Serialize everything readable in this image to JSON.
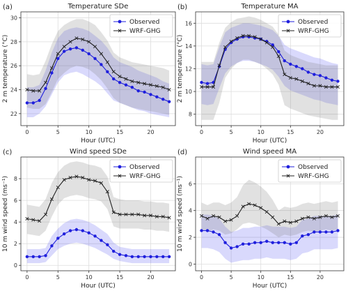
{
  "chart_data": [
    {
      "type": "line",
      "panel_label": "(a)",
      "title": "Temperature SDe",
      "xlabel": "Hour (UTC)",
      "ylabel": "2 m temperature (°C)",
      "xlim": [
        -1,
        24
      ],
      "ylim": [
        21,
        30.5
      ],
      "xticks": [
        0,
        5,
        10,
        15,
        20
      ],
      "yticks": [
        22,
        24,
        26,
        28,
        30
      ],
      "legend_position": "top-right",
      "x": [
        0,
        1,
        2,
        3,
        4,
        5,
        6,
        7,
        8,
        9,
        10,
        11,
        12,
        13,
        14,
        15,
        16,
        17,
        18,
        19,
        20,
        21,
        22,
        23
      ],
      "series": [
        {
          "name": "Observed",
          "color": "#1f1fdd",
          "marker": "circle",
          "values": [
            22.9,
            22.9,
            23.1,
            24.1,
            25.4,
            26.6,
            27.2,
            27.4,
            27.5,
            27.3,
            27.0,
            26.6,
            26.1,
            25.5,
            24.9,
            24.6,
            24.4,
            24.2,
            23.9,
            23.8,
            23.6,
            23.4,
            23.2,
            23.0
          ],
          "band_lower": [
            21.7,
            21.7,
            22.0,
            22.6,
            23.6,
            24.6,
            25.2,
            25.4,
            25.5,
            25.3,
            25.0,
            24.7,
            24.3,
            23.7,
            23.1,
            22.9,
            22.7,
            22.5,
            22.3,
            22.2,
            22.0,
            21.9,
            21.8,
            21.7
          ],
          "band_upper": [
            24.2,
            24.2,
            24.4,
            25.6,
            27.1,
            28.3,
            28.9,
            29.1,
            29.2,
            29.1,
            28.9,
            28.5,
            28.1,
            27.5,
            26.7,
            26.3,
            26.1,
            25.9,
            25.6,
            25.4,
            25.2,
            25.0,
            24.7,
            24.5
          ]
        },
        {
          "name": "WRF-GHG",
          "color": "#222222",
          "marker": "x",
          "values": [
            24.0,
            23.9,
            23.9,
            24.6,
            25.8,
            27.0,
            27.6,
            28.0,
            28.3,
            28.2,
            28.0,
            27.6,
            27.0,
            26.3,
            25.5,
            25.1,
            24.9,
            24.7,
            24.6,
            24.5,
            24.4,
            24.3,
            24.2,
            24.0
          ],
          "band_lower": [
            22.5,
            22.4,
            22.4,
            22.8,
            23.8,
            24.9,
            25.4,
            25.8,
            26.0,
            25.9,
            25.7,
            25.3,
            24.8,
            24.1,
            23.3,
            22.9,
            22.7,
            22.5,
            22.4,
            22.3,
            22.2,
            22.1,
            22.0,
            21.9
          ],
          "band_upper": [
            25.3,
            25.2,
            25.3,
            26.4,
            27.8,
            28.9,
            29.4,
            29.7,
            29.9,
            29.9,
            29.7,
            29.4,
            28.8,
            28.1,
            27.1,
            26.7,
            26.5,
            26.3,
            26.2,
            26.1,
            26.0,
            25.9,
            25.8,
            25.6
          ]
        }
      ]
    },
    {
      "type": "line",
      "panel_label": "(b)",
      "title": "Temperature MA",
      "xlabel": "Hour (UTC)",
      "ylabel": "2 m temperature (°C)",
      "xlim": [
        -1,
        24
      ],
      "ylim": [
        7,
        17
      ],
      "xticks": [
        0,
        5,
        10,
        15,
        20
      ],
      "yticks": [
        8,
        10,
        12,
        14,
        16
      ],
      "legend_position": "top-right",
      "x": [
        0,
        1,
        2,
        3,
        4,
        5,
        6,
        7,
        8,
        9,
        10,
        11,
        12,
        13,
        14,
        15,
        16,
        17,
        18,
        19,
        20,
        21,
        22,
        23
      ],
      "series": [
        {
          "name": "Observed",
          "color": "#1f1fdd",
          "marker": "circle",
          "values": [
            10.8,
            10.7,
            10.8,
            12.2,
            13.7,
            14.3,
            14.6,
            14.8,
            14.8,
            14.7,
            14.6,
            14.4,
            14.1,
            13.5,
            12.7,
            12.4,
            12.2,
            12.0,
            11.7,
            11.5,
            11.4,
            11.2,
            11.0,
            10.9
          ],
          "band_lower": [
            8.9,
            8.8,
            8.9,
            10.3,
            11.6,
            12.2,
            12.5,
            12.7,
            12.7,
            12.6,
            12.4,
            12.2,
            11.9,
            11.3,
            10.5,
            10.1,
            9.9,
            9.7,
            9.5,
            9.3,
            9.2,
            9.0,
            8.9,
            8.8
          ],
          "band_upper": [
            12.4,
            12.3,
            12.4,
            13.9,
            15.2,
            15.6,
            15.8,
            16.0,
            16.0,
            15.9,
            15.8,
            15.6,
            15.4,
            14.9,
            14.1,
            13.8,
            13.6,
            13.4,
            13.2,
            13.0,
            12.9,
            12.7,
            12.5,
            12.4
          ]
        },
        {
          "name": "WRF-GHG",
          "color": "#222222",
          "marker": "x",
          "values": [
            10.4,
            10.4,
            10.4,
            12.3,
            13.9,
            14.4,
            14.7,
            14.9,
            14.9,
            14.8,
            14.6,
            14.3,
            13.9,
            13.1,
            11.5,
            11.2,
            11.1,
            10.9,
            10.7,
            10.5,
            10.5,
            10.4,
            10.4,
            10.4
          ],
          "band_lower": [
            7.5,
            7.5,
            7.5,
            9.0,
            11.2,
            12.0,
            12.5,
            12.8,
            12.8,
            12.6,
            12.4,
            12.0,
            11.5,
            10.6,
            8.8,
            8.5,
            8.3,
            8.1,
            7.9,
            7.8,
            7.7,
            7.6,
            7.5,
            7.5
          ],
          "band_upper": [
            12.6,
            12.6,
            12.6,
            14.3,
            15.6,
            16.1,
            16.4,
            16.5,
            16.6,
            16.5,
            16.3,
            16.0,
            15.7,
            15.0,
            13.6,
            13.2,
            13.0,
            12.8,
            12.6,
            12.5,
            12.4,
            12.3,
            12.3,
            12.3
          ]
        }
      ]
    },
    {
      "type": "line",
      "panel_label": "(c)",
      "title": "Wind speed SDe",
      "xlabel": "Hour (UTC)",
      "ylabel": "10 m wind speed (ms⁻¹)",
      "xlim": [
        -1,
        24
      ],
      "ylim": [
        -0.5,
        10
      ],
      "xticks": [
        0,
        5,
        10,
        15,
        20
      ],
      "yticks": [
        0,
        2,
        4,
        6,
        8
      ],
      "legend_position": "top-right",
      "x": [
        0,
        1,
        2,
        3,
        4,
        5,
        6,
        7,
        8,
        9,
        10,
        11,
        12,
        13,
        14,
        15,
        16,
        17,
        18,
        19,
        20,
        21,
        22,
        23
      ],
      "series": [
        {
          "name": "Observed",
          "color": "#1f1fdd",
          "marker": "circle",
          "values": [
            0.8,
            0.8,
            0.8,
            0.9,
            1.8,
            2.5,
            2.9,
            3.2,
            3.3,
            3.2,
            3.0,
            2.7,
            2.3,
            1.9,
            1.3,
            1.0,
            0.9,
            0.8,
            0.8,
            0.8,
            0.8,
            0.8,
            0.8,
            0.8
          ],
          "band_lower": [
            0.2,
            0.2,
            0.2,
            0.3,
            0.9,
            1.5,
            1.8,
            2.0,
            2.1,
            2.0,
            1.8,
            1.6,
            1.3,
            1.0,
            0.6,
            0.4,
            0.3,
            0.2,
            0.2,
            0.2,
            0.2,
            0.2,
            0.2,
            0.2
          ],
          "band_upper": [
            1.5,
            1.5,
            1.5,
            1.6,
            2.7,
            3.4,
            3.9,
            4.2,
            4.3,
            4.2,
            4.0,
            3.7,
            3.3,
            2.9,
            2.1,
            1.7,
            1.6,
            1.5,
            1.5,
            1.5,
            1.5,
            1.5,
            1.5,
            1.5
          ]
        },
        {
          "name": "WRF-GHG",
          "color": "#222222",
          "marker": "x",
          "values": [
            4.3,
            4.2,
            4.1,
            4.7,
            6.1,
            7.2,
            7.9,
            8.1,
            8.2,
            8.1,
            7.9,
            7.8,
            7.6,
            6.8,
            4.9,
            4.7,
            4.7,
            4.7,
            4.7,
            4.6,
            4.6,
            4.5,
            4.5,
            4.4
          ],
          "band_lower": [
            2.9,
            2.8,
            2.7,
            3.2,
            4.5,
            5.6,
            6.2,
            6.4,
            6.5,
            6.4,
            6.2,
            6.1,
            5.9,
            5.2,
            3.6,
            3.4,
            3.4,
            3.4,
            3.4,
            3.3,
            3.3,
            3.2,
            3.2,
            3.1
          ],
          "band_upper": [
            5.6,
            5.5,
            5.4,
            6.1,
            7.6,
            8.6,
            9.2,
            9.5,
            9.6,
            9.5,
            9.3,
            9.2,
            9.0,
            8.2,
            6.3,
            6.1,
            6.0,
            6.0,
            6.0,
            5.9,
            5.9,
            5.8,
            5.8,
            5.7
          ]
        }
      ]
    },
    {
      "type": "line",
      "panel_label": "(d)",
      "title": "Wind speed MA",
      "xlabel": "Hour (UTC)",
      "ylabel": "10 m wind speed (ms⁻¹)",
      "xlim": [
        -1,
        24
      ],
      "ylim": [
        -0.5,
        8
      ],
      "xticks": [
        0,
        5,
        10,
        15,
        20
      ],
      "yticks": [
        0,
        2,
        4,
        6
      ],
      "legend_position": "top-right",
      "x": [
        0,
        1,
        2,
        3,
        4,
        5,
        6,
        7,
        8,
        9,
        10,
        11,
        12,
        13,
        14,
        15,
        16,
        17,
        18,
        19,
        20,
        21,
        22,
        23
      ],
      "series": [
        {
          "name": "Observed",
          "color": "#1f1fdd",
          "marker": "circle",
          "values": [
            2.5,
            2.5,
            2.4,
            2.2,
            1.6,
            1.2,
            1.3,
            1.5,
            1.5,
            1.6,
            1.6,
            1.7,
            1.6,
            1.6,
            1.6,
            1.5,
            1.6,
            2.1,
            2.2,
            2.4,
            2.4,
            2.4,
            2.4,
            2.5
          ],
          "band_lower": [
            1.2,
            1.2,
            1.1,
            0.9,
            0.4,
            0.1,
            0.2,
            0.3,
            0.3,
            0.4,
            0.4,
            0.5,
            0.4,
            0.4,
            0.4,
            0.3,
            0.4,
            0.8,
            0.9,
            1.1,
            1.1,
            1.1,
            1.1,
            1.2
          ],
          "band_upper": [
            3.7,
            3.7,
            3.6,
            3.4,
            2.8,
            2.4,
            2.5,
            2.7,
            2.7,
            2.8,
            2.8,
            2.9,
            2.8,
            2.8,
            2.8,
            2.7,
            2.8,
            3.3,
            3.4,
            3.6,
            3.6,
            3.6,
            3.6,
            3.7
          ]
        },
        {
          "name": "WRF-GHG",
          "color": "#222222",
          "marker": "x",
          "values": [
            3.6,
            3.4,
            3.6,
            3.5,
            3.2,
            3.3,
            3.6,
            4.3,
            4.5,
            4.4,
            4.2,
            3.9,
            3.5,
            3.0,
            3.2,
            3.1,
            3.2,
            3.4,
            3.5,
            3.4,
            3.5,
            3.6,
            3.5,
            3.6
          ],
          "band_lower": [
            2.6,
            2.4,
            2.6,
            2.5,
            2.2,
            2.3,
            2.6,
            3.0,
            3.1,
            3.0,
            2.8,
            2.6,
            2.3,
            2.0,
            2.2,
            2.1,
            2.2,
            2.4,
            2.5,
            2.4,
            2.5,
            2.6,
            2.5,
            2.6
          ],
          "band_upper": [
            4.6,
            4.4,
            4.6,
            4.6,
            4.4,
            4.6,
            5.0,
            5.9,
            6.3,
            6.1,
            5.8,
            5.4,
            4.8,
            4.0,
            4.3,
            4.2,
            4.3,
            4.5,
            4.6,
            4.5,
            4.6,
            4.7,
            4.6,
            4.7
          ]
        }
      ]
    }
  ]
}
